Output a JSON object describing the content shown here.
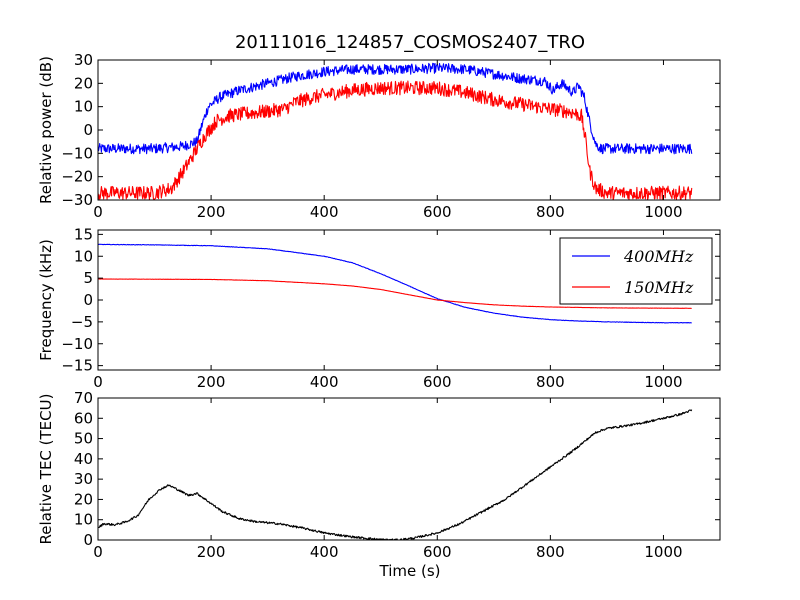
{
  "chart_data": {
    "title": "20111016_124857_COSMOS2407_TRO",
    "xlabel": "Time (s)",
    "panels": [
      {
        "type": "line",
        "ylabel": "Relative power (dB)",
        "xlim": [
          0,
          1100
        ],
        "ylim": [
          -30,
          30
        ],
        "xticks": [
          0,
          200,
          400,
          600,
          800,
          1000
        ],
        "yticks": [
          -30,
          -20,
          -10,
          0,
          10,
          20,
          30
        ],
        "legend": null,
        "series": [
          {
            "color": "#0000ff",
            "noise": 2.2,
            "points": [
              [
                0,
                -8
              ],
              [
                100,
                -8
              ],
              [
                150,
                -7
              ],
              [
                175,
                -5
              ],
              [
                185,
                3
              ],
              [
                195,
                10
              ],
              [
                215,
                14
              ],
              [
                250,
                17
              ],
              [
                300,
                20
              ],
              [
                350,
                23
              ],
              [
                400,
                25
              ],
              [
                450,
                26
              ],
              [
                500,
                26
              ],
              [
                550,
                26
              ],
              [
                600,
                26.5
              ],
              [
                650,
                26
              ],
              [
                700,
                24
              ],
              [
                750,
                22
              ],
              [
                790,
                21
              ],
              [
                805,
                17
              ],
              [
                820,
                20
              ],
              [
                840,
                16
              ],
              [
                850,
                19
              ],
              [
                860,
                14
              ],
              [
                870,
                3
              ],
              [
                880,
                -6
              ],
              [
                890,
                -8
              ],
              [
                1050,
                -8
              ]
            ]
          },
          {
            "color": "#ff0000",
            "noise": 3.0,
            "points": [
              [
                0,
                -27
              ],
              [
                100,
                -27
              ],
              [
                130,
                -25
              ],
              [
                150,
                -18
              ],
              [
                170,
                -10
              ],
              [
                190,
                -2
              ],
              [
                210,
                4
              ],
              [
                230,
                6
              ],
              [
                260,
                7
              ],
              [
                300,
                8
              ],
              [
                330,
                9
              ],
              [
                350,
                12
              ],
              [
                380,
                14
              ],
              [
                400,
                15
              ],
              [
                450,
                17
              ],
              [
                500,
                18
              ],
              [
                550,
                18
              ],
              [
                600,
                18
              ],
              [
                650,
                16
              ],
              [
                700,
                13
              ],
              [
                750,
                11
              ],
              [
                800,
                9
              ],
              [
                830,
                8
              ],
              [
                845,
                7
              ],
              [
                855,
                6
              ],
              [
                862,
                -4
              ],
              [
                870,
                -18
              ],
              [
                880,
                -25
              ],
              [
                900,
                -27
              ],
              [
                1050,
                -27
              ]
            ]
          }
        ]
      },
      {
        "type": "line",
        "ylabel": "Frequency (kHz)",
        "xlim": [
          0,
          1100
        ],
        "ylim": [
          -16,
          16
        ],
        "xticks": [
          0,
          200,
          400,
          600,
          800,
          1000
        ],
        "yticks": [
          -15,
          -10,
          -5,
          0,
          5,
          10,
          15
        ],
        "legend": "top-right",
        "series": [
          {
            "name": "400MHz",
            "color": "#0000ff",
            "noise": 0.05,
            "points": [
              [
                0,
                12.7
              ],
              [
                100,
                12.6
              ],
              [
                200,
                12.4
              ],
              [
                300,
                11.7
              ],
              [
                400,
                10.0
              ],
              [
                450,
                8.5
              ],
              [
                500,
                6.0
              ],
              [
                550,
                3.2
              ],
              [
                600,
                0.3
              ],
              [
                650,
                -1.7
              ],
              [
                700,
                -3.0
              ],
              [
                750,
                -3.9
              ],
              [
                800,
                -4.5
              ],
              [
                850,
                -4.8
              ],
              [
                900,
                -5.0
              ],
              [
                1000,
                -5.2
              ],
              [
                1050,
                -5.2
              ]
            ]
          },
          {
            "name": "150MHz",
            "color": "#ff0000",
            "noise": 0.02,
            "points": [
              [
                0,
                4.8
              ],
              [
                100,
                4.75
              ],
              [
                200,
                4.7
              ],
              [
                300,
                4.4
              ],
              [
                400,
                3.7
              ],
              [
                450,
                3.2
              ],
              [
                500,
                2.4
              ],
              [
                550,
                1.2
              ],
              [
                600,
                0.0
              ],
              [
                650,
                -0.6
              ],
              [
                700,
                -1.1
              ],
              [
                750,
                -1.4
              ],
              [
                800,
                -1.6
              ],
              [
                900,
                -1.8
              ],
              [
                1050,
                -1.9
              ]
            ]
          }
        ]
      },
      {
        "type": "line",
        "ylabel": "Relative TEC (TECU)",
        "xlim": [
          0,
          1100
        ],
        "ylim": [
          0,
          70
        ],
        "xticks": [
          0,
          200,
          400,
          600,
          800,
          1000
        ],
        "yticks": [
          0,
          10,
          20,
          30,
          40,
          50,
          60,
          70
        ],
        "legend": null,
        "series": [
          {
            "color": "#000000",
            "noise": 0.5,
            "points": [
              [
                0,
                6
              ],
              [
                10,
                8
              ],
              [
                30,
                7.5
              ],
              [
                50,
                9
              ],
              [
                70,
                12
              ],
              [
                90,
                20
              ],
              [
                110,
                25
              ],
              [
                125,
                27
              ],
              [
                140,
                25
              ],
              [
                160,
                22
              ],
              [
                175,
                23
              ],
              [
                190,
                20
              ],
              [
                220,
                14
              ],
              [
                250,
                10.5
              ],
              [
                280,
                9
              ],
              [
                320,
                8
              ],
              [
                360,
                6
              ],
              [
                400,
                3.5
              ],
              [
                450,
                1.5
              ],
              [
                500,
                0.2
              ],
              [
                530,
                0
              ],
              [
                560,
                1
              ],
              [
                600,
                3.5
              ],
              [
                640,
                8
              ],
              [
                680,
                14
              ],
              [
                720,
                20
              ],
              [
                760,
                28
              ],
              [
                800,
                36
              ],
              [
                840,
                44
              ],
              [
                880,
                53
              ],
              [
                900,
                55
              ],
              [
                950,
                57
              ],
              [
                1000,
                60
              ],
              [
                1030,
                62
              ],
              [
                1050,
                64
              ]
            ]
          }
        ]
      }
    ]
  }
}
